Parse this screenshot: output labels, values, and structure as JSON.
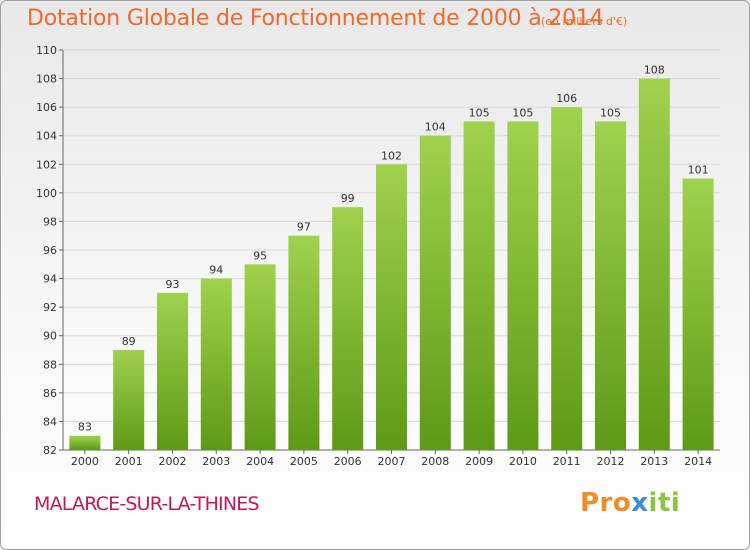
{
  "title": "Dotation Globale de Fonctionnement de 2000 à 2014",
  "subtitle": "(en milliers d'€)",
  "city": "MALARCE-SUR-LA-THINES",
  "logo": {
    "text": "Proxiti",
    "colors": [
      "#f28c28",
      "#3a8fd0",
      "#8cc63f"
    ]
  },
  "colors": {
    "bar_top": "#9fd24e",
    "bar_bottom": "#5e9a16",
    "title": "#ef6a2a",
    "city": "#c2185b",
    "grid": "#d8d8d8"
  },
  "chart_data": {
    "type": "bar",
    "title": "Dotation Globale de Fonctionnement de 2000 à 2014",
    "subtitle": "(en milliers d'€)",
    "categories": [
      "2000",
      "2001",
      "2002",
      "2003",
      "2004",
      "2005",
      "2006",
      "2007",
      "2008",
      "2009",
      "2010",
      "2011",
      "2012",
      "2013",
      "2014"
    ],
    "values": [
      83,
      89,
      93,
      94,
      95,
      97,
      99,
      102,
      104,
      105,
      105,
      106,
      105,
      108,
      101
    ],
    "ylim": [
      82,
      110
    ],
    "yticks": [
      82,
      84,
      86,
      88,
      90,
      92,
      94,
      96,
      98,
      100,
      102,
      104,
      106,
      108,
      110
    ],
    "xlabel": "",
    "ylabel": "",
    "grid": true,
    "data_labels": true
  }
}
